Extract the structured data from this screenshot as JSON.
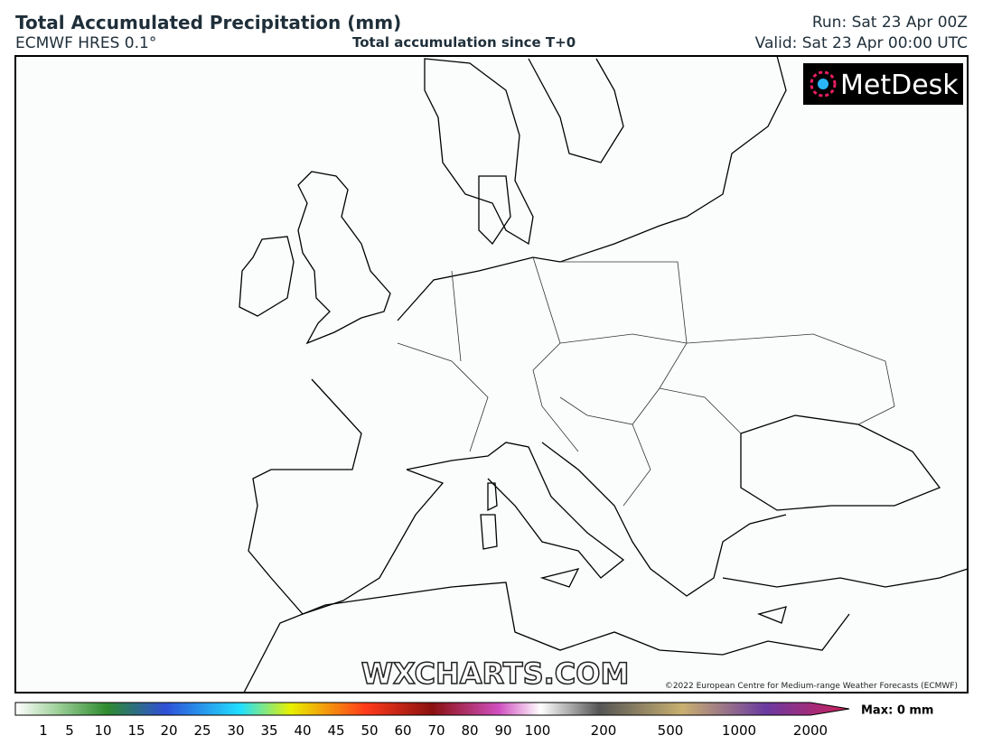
{
  "header": {
    "title": "Total Accumulated Precipitation (mm)",
    "model": "ECMWF HRES 0.1°",
    "subtitle": "Total accumulation since T+0",
    "run": "Run: Sat 23 Apr 00Z",
    "valid": "Valid: Sat 23 Apr 00:00 UTC"
  },
  "map": {
    "logo": "MetDesk",
    "watermark": "WXCHARTS.COM",
    "copyright": "©2022 European Centre for Medium-range Weather Forecasts (ECMWF)"
  },
  "legend": {
    "ticks": [
      1,
      5,
      10,
      15,
      20,
      25,
      30,
      35,
      40,
      45,
      50,
      60,
      70,
      80,
      90,
      100,
      200,
      500,
      1000,
      2000
    ],
    "max": "Max: 0 mm"
  }
}
